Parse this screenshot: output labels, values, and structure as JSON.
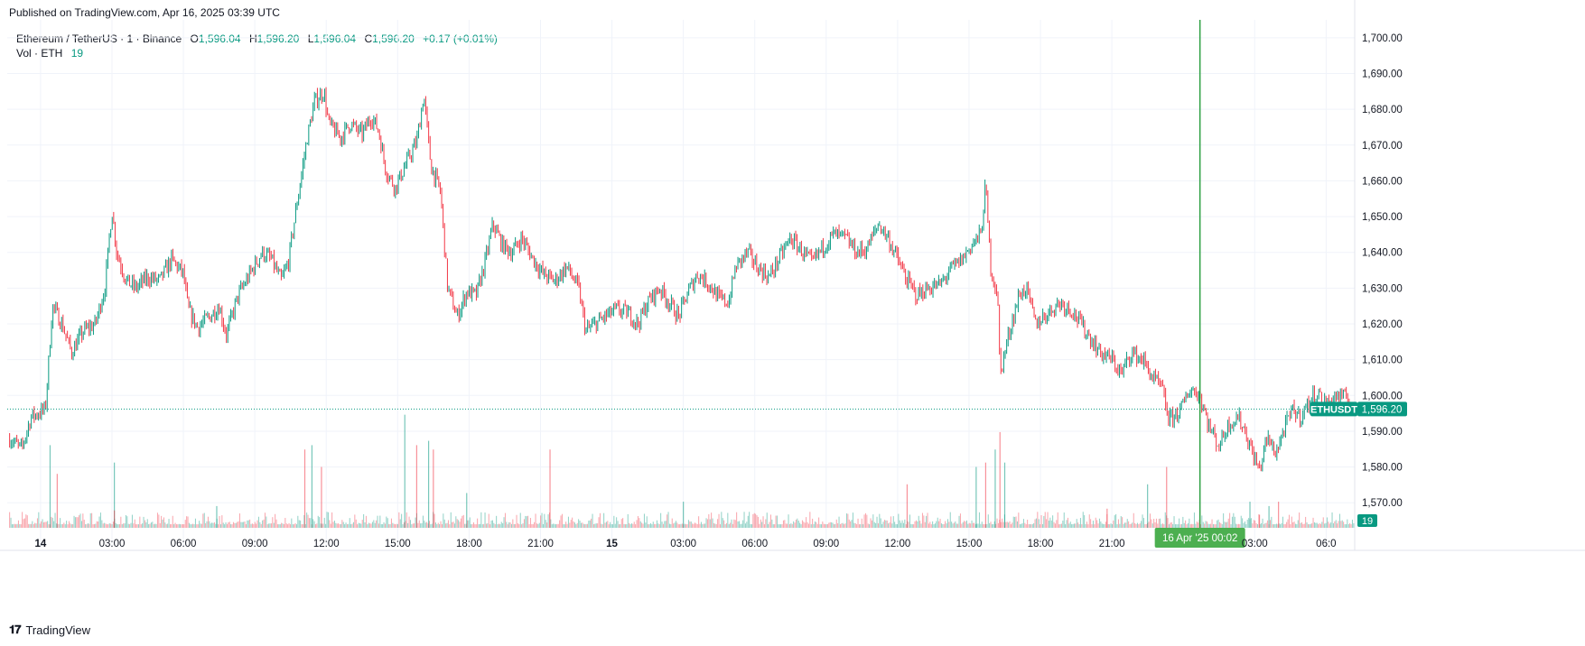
{
  "header": {
    "published": "Published on TradingView.com, Apr 16, 2025 03:39 UTC"
  },
  "legend": {
    "symbol": "Ethereum / TetherUS · 1 · Binance",
    "o_label": "O",
    "o": "1,596.04",
    "h_label": "H",
    "h": "1,596.20",
    "l_label": "L",
    "l": "1,596.04",
    "c_label": "C",
    "c": "1,596.20",
    "change": "+0.17 (+0.01%)",
    "vol_label": "Vol · ETH",
    "vol": "19"
  },
  "footer": {
    "brand": "TradingView",
    "logo": "𝟏𝟕"
  },
  "colors": {
    "up": "#089981",
    "down": "#f23645",
    "grid": "#f0f3fa",
    "cursor": "#2ea043",
    "price_tag": "#089981"
  },
  "chart_data": {
    "type": "candlestick",
    "symbol": "ETHUSDT",
    "timeframe": "1",
    "ylim": [
      1563,
      1705
    ],
    "y_ticks": [
      "1,570.00",
      "1,580.00",
      "1,590.00",
      "1,600.00",
      "1,610.00",
      "1,620.00",
      "1,630.00",
      "1,640.00",
      "1,650.00",
      "1,660.00",
      "1,670.00",
      "1,680.00",
      "1,690.00",
      "1,700.00"
    ],
    "y_tick_values": [
      1570,
      1580,
      1590,
      1600,
      1610,
      1620,
      1630,
      1640,
      1650,
      1660,
      1670,
      1680,
      1690,
      1700
    ],
    "x_ticks": [
      "14",
      "03:00",
      "06:00",
      "09:00",
      "12:00",
      "15:00",
      "18:00",
      "21:00",
      "15",
      "03:00",
      "06:00",
      "09:00",
      "12:00",
      "15:00",
      "18:00",
      "21:00",
      "03:00",
      "06:0"
    ],
    "x_tick_hours": [
      0,
      3,
      6,
      9,
      12,
      15,
      18,
      21,
      24,
      27,
      30,
      33,
      36,
      39,
      42,
      45,
      51,
      54
    ],
    "x_range_hours": [
      -1.4,
      55.2
    ],
    "close_path": [
      [
        -1.3,
        1588
      ],
      [
        -0.8,
        1585
      ],
      [
        -0.4,
        1594
      ],
      [
        0.2,
        1596
      ],
      [
        0.5,
        1625
      ],
      [
        0.9,
        1620
      ],
      [
        1.3,
        1612
      ],
      [
        1.8,
        1618
      ],
      [
        2.3,
        1620
      ],
      [
        2.7,
        1630
      ],
      [
        3.0,
        1652
      ],
      [
        3.2,
        1640
      ],
      [
        3.6,
        1632
      ],
      [
        4.0,
        1630
      ],
      [
        4.5,
        1633
      ],
      [
        5.0,
        1632
      ],
      [
        5.5,
        1638
      ],
      [
        6.0,
        1634
      ],
      [
        6.2,
        1624
      ],
      [
        6.6,
        1619
      ],
      [
        7.1,
        1622
      ],
      [
        7.5,
        1625
      ],
      [
        7.8,
        1617
      ],
      [
        8.3,
        1628
      ],
      [
        8.8,
        1634
      ],
      [
        9.3,
        1640
      ],
      [
        9.7,
        1638
      ],
      [
        10.1,
        1632
      ],
      [
        10.4,
        1637
      ],
      [
        10.8,
        1655
      ],
      [
        11.2,
        1672
      ],
      [
        11.5,
        1682
      ],
      [
        11.9,
        1685
      ],
      [
        12.1,
        1676
      ],
      [
        12.6,
        1672
      ],
      [
        13.0,
        1676
      ],
      [
        13.5,
        1673
      ],
      [
        13.9,
        1678
      ],
      [
        14.2,
        1674
      ],
      [
        14.5,
        1663
      ],
      [
        14.9,
        1658
      ],
      [
        15.3,
        1664
      ],
      [
        15.8,
        1671
      ],
      [
        16.1,
        1684
      ],
      [
        16.4,
        1664
      ],
      [
        16.8,
        1657
      ],
      [
        17.1,
        1630
      ],
      [
        17.5,
        1622
      ],
      [
        17.9,
        1629
      ],
      [
        18.3,
        1628
      ],
      [
        18.7,
        1638
      ],
      [
        19.0,
        1648
      ],
      [
        19.4,
        1642
      ],
      [
        19.8,
        1640
      ],
      [
        20.2,
        1644
      ],
      [
        20.7,
        1638
      ],
      [
        21.1,
        1634
      ],
      [
        21.6,
        1632
      ],
      [
        22.1,
        1636
      ],
      [
        22.6,
        1630
      ],
      [
        22.9,
        1618
      ],
      [
        23.3,
        1620
      ],
      [
        23.7,
        1622
      ],
      [
        24.2,
        1624
      ],
      [
        24.7,
        1623
      ],
      [
        25.1,
        1620
      ],
      [
        25.5,
        1626
      ],
      [
        26.0,
        1630
      ],
      [
        26.4,
        1626
      ],
      [
        26.8,
        1622
      ],
      [
        27.2,
        1629
      ],
      [
        27.6,
        1634
      ],
      [
        28.1,
        1631
      ],
      [
        28.5,
        1627
      ],
      [
        28.9,
        1626
      ],
      [
        29.2,
        1636
      ],
      [
        29.7,
        1640
      ],
      [
        30.1,
        1636
      ],
      [
        30.6,
        1633
      ],
      [
        31.0,
        1638
      ],
      [
        31.5,
        1644
      ],
      [
        31.9,
        1641
      ],
      [
        32.4,
        1637
      ],
      [
        32.8,
        1641
      ],
      [
        33.3,
        1645
      ],
      [
        33.8,
        1644
      ],
      [
        34.3,
        1640
      ],
      [
        34.7,
        1641
      ],
      [
        35.2,
        1648
      ],
      [
        35.6,
        1644
      ],
      [
        36.0,
        1638
      ],
      [
        36.4,
        1632
      ],
      [
        36.8,
        1628
      ],
      [
        37.3,
        1630
      ],
      [
        37.8,
        1631
      ],
      [
        38.2,
        1635
      ],
      [
        38.7,
        1638
      ],
      [
        39.1,
        1642
      ],
      [
        39.5,
        1645
      ],
      [
        39.7,
        1659
      ],
      [
        39.9,
        1636
      ],
      [
        40.2,
        1628
      ],
      [
        40.3,
        1606
      ],
      [
        40.7,
        1618
      ],
      [
        41.1,
        1628
      ],
      [
        41.4,
        1630
      ],
      [
        41.8,
        1620
      ],
      [
        42.3,
        1623
      ],
      [
        42.8,
        1626
      ],
      [
        43.3,
        1624
      ],
      [
        43.7,
        1620
      ],
      [
        44.1,
        1616
      ],
      [
        44.5,
        1612
      ],
      [
        45.0,
        1610
      ],
      [
        45.4,
        1606
      ],
      [
        45.8,
        1612
      ],
      [
        46.3,
        1610
      ],
      [
        46.7,
        1605
      ],
      [
        47.1,
        1602
      ],
      [
        47.4,
        1593
      ],
      [
        47.9,
        1596
      ],
      [
        48.3,
        1602
      ],
      [
        48.7,
        1600
      ],
      [
        49.1,
        1591
      ],
      [
        49.5,
        1586
      ],
      [
        49.9,
        1592
      ],
      [
        50.3,
        1594
      ],
      [
        50.6,
        1590
      ],
      [
        50.9,
        1584
      ],
      [
        51.2,
        1579
      ],
      [
        51.5,
        1588
      ],
      [
        51.9,
        1584
      ],
      [
        52.2,
        1590
      ],
      [
        52.6,
        1596
      ],
      [
        52.9,
        1594
      ],
      [
        53.3,
        1598
      ],
      [
        53.6,
        1601
      ],
      [
        54.0,
        1597
      ],
      [
        54.4,
        1600
      ],
      [
        54.9,
        1599
      ],
      [
        55.2,
        1596
      ]
    ],
    "volume_spikes": [
      [
        0.4,
        95
      ],
      [
        0.7,
        62
      ],
      [
        3.1,
        75
      ],
      [
        3.1,
        20
      ],
      [
        7.4,
        25
      ],
      [
        11.1,
        90
      ],
      [
        11.4,
        95
      ],
      [
        11.8,
        70
      ],
      [
        15.3,
        130
      ],
      [
        15.8,
        95
      ],
      [
        16.3,
        100
      ],
      [
        16.5,
        90
      ],
      [
        17.9,
        40
      ],
      [
        21.4,
        90
      ],
      [
        27.0,
        30
      ],
      [
        36.4,
        50
      ],
      [
        39.3,
        70
      ],
      [
        39.7,
        75
      ],
      [
        40.1,
        90
      ],
      [
        40.3,
        110
      ],
      [
        40.5,
        75
      ],
      [
        44.8,
        22
      ],
      [
        46.5,
        50
      ],
      [
        47.3,
        70
      ],
      [
        50.8,
        30
      ],
      [
        51.2,
        15
      ],
      [
        51.6,
        25
      ],
      [
        52.0,
        30
      ]
    ],
    "volume_max": 140,
    "last_price": 1596.2,
    "last_price_label": "1,596.20",
    "price_tag_symbol": "ETHUSDT",
    "volume_tag": "19",
    "cursor_hour": 48.7,
    "cursor_label": "16 Apr '25   00:02"
  }
}
